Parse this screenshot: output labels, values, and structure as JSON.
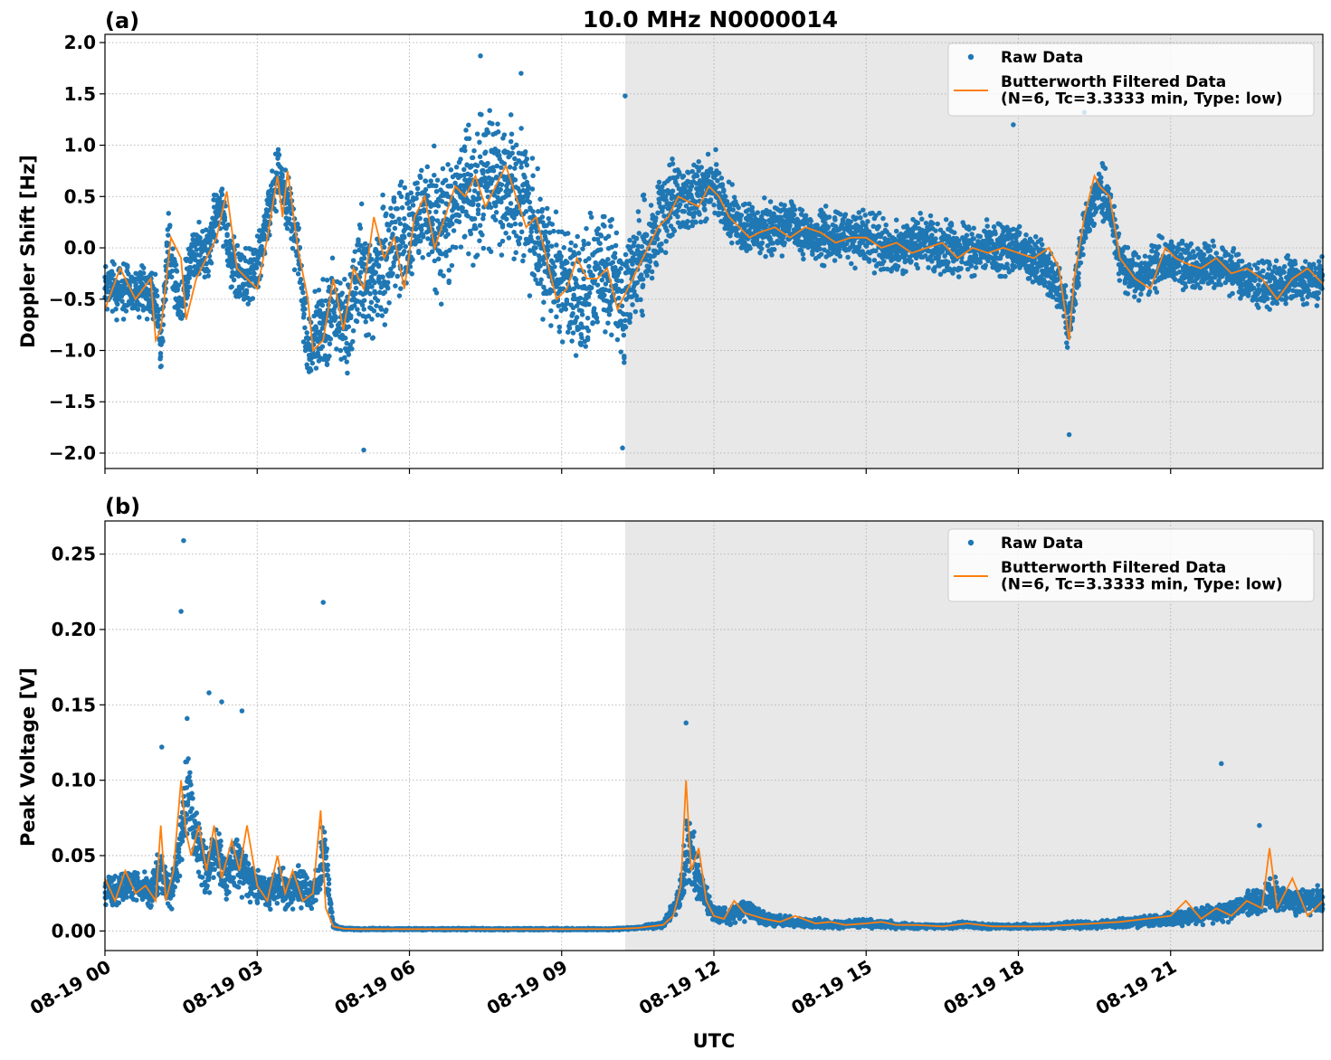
{
  "figure": {
    "title": "10.0 MHz N0000014",
    "xlabel": "UTC",
    "x_tick_labels": [
      "08-19 00",
      "08-19 03",
      "08-19 06",
      "08-19 09",
      "08-19 12",
      "08-19 15",
      "08-19 18",
      "08-19 21"
    ],
    "colors": {
      "raw": "#1f77b4",
      "filtered": "#ff7f0e",
      "shade": "#e8e8e8"
    }
  },
  "chart_data": [
    {
      "type": "scatter",
      "panel_label": "(a)",
      "ylabel": "Doppler Shift [Hz]",
      "xlim_hours": [
        0,
        24
      ],
      "ylim": [
        -2.15,
        2.08
      ],
      "y_ticks": [
        -2.0,
        -1.5,
        -1.0,
        -0.5,
        0.0,
        0.5,
        1.0,
        1.5,
        2.0
      ],
      "y_tick_labels": [
        "−2.0",
        "−1.5",
        "−1.0",
        "−0.5",
        "0.0",
        "0.5",
        "1.0",
        "1.5",
        "2.0"
      ],
      "shaded_region_hours": [
        10.25,
        24
      ],
      "grid": true,
      "legend": {
        "position": "top-right",
        "entries": [
          "Raw Data",
          "Butterworth Filtered Data\n(N=6, Tc=3.3333 min, Type: low)"
        ]
      },
      "series": [
        {
          "name": "Raw Data",
          "kind": "scatter",
          "x_hours": [
            0.0,
            0.5,
            1.0,
            1.1,
            1.25,
            1.5,
            1.75,
            2.0,
            2.3,
            2.5,
            2.75,
            3.0,
            3.25,
            3.4,
            3.6,
            3.8,
            4.0,
            4.2,
            4.5,
            4.8,
            5.0,
            5.3,
            5.6,
            6.0,
            6.3,
            6.6,
            7.0,
            7.3,
            7.6,
            8.0,
            8.3,
            8.6,
            9.0,
            9.3,
            9.6,
            10.0,
            10.2,
            10.5,
            11.0,
            11.3,
            11.6,
            12.0,
            12.3,
            12.6,
            13.0,
            13.5,
            14.0,
            14.5,
            15.0,
            15.5,
            16.0,
            16.5,
            17.0,
            17.5,
            18.0,
            18.5,
            18.9,
            19.0,
            19.3,
            19.6,
            19.8,
            20.0,
            20.3,
            20.6,
            21.0,
            21.5,
            22.0,
            22.5,
            23.0,
            23.5,
            24.0
          ],
          "y_center": [
            -0.4,
            -0.4,
            -0.5,
            -1.0,
            0.1,
            -0.6,
            0.0,
            -0.1,
            0.5,
            -0.2,
            -0.3,
            -0.2,
            0.4,
            0.75,
            0.5,
            0.0,
            -1.0,
            -0.8,
            -0.6,
            -0.8,
            -0.2,
            -0.4,
            0.0,
            0.1,
            0.4,
            0.2,
            0.5,
            0.6,
            0.7,
            0.6,
            0.4,
            0.0,
            -0.3,
            -0.5,
            -0.3,
            -0.3,
            -0.5,
            -0.2,
            0.3,
            0.5,
            0.5,
            0.6,
            0.35,
            0.15,
            0.2,
            0.2,
            0.1,
            0.1,
            0.1,
            0.0,
            0.05,
            0.0,
            0.0,
            0.0,
            -0.05,
            -0.2,
            -0.5,
            -0.8,
            0.2,
            0.6,
            0.4,
            -0.1,
            -0.3,
            -0.2,
            -0.1,
            -0.2,
            -0.2,
            -0.3,
            -0.4,
            -0.3,
            -0.3
          ],
          "y_spread": [
            0.4,
            0.4,
            0.4,
            0.3,
            0.4,
            0.4,
            0.4,
            0.4,
            0.4,
            0.4,
            0.4,
            0.4,
            0.4,
            0.4,
            0.4,
            0.5,
            0.5,
            0.6,
            0.7,
            0.7,
            0.8,
            0.8,
            0.8,
            0.8,
            0.8,
            0.9,
            0.9,
            0.9,
            0.9,
            0.9,
            0.9,
            0.8,
            0.8,
            0.8,
            0.8,
            0.8,
            0.8,
            0.7,
            0.6,
            0.5,
            0.5,
            0.4,
            0.4,
            0.35,
            0.35,
            0.35,
            0.35,
            0.35,
            0.35,
            0.35,
            0.35,
            0.35,
            0.35,
            0.35,
            0.35,
            0.35,
            0.35,
            0.35,
            0.35,
            0.35,
            0.35,
            0.35,
            0.35,
            0.35,
            0.3,
            0.3,
            0.3,
            0.3,
            0.3,
            0.3,
            0.3
          ],
          "y_extremes": [
            [
              1.87,
              7.4
            ],
            [
              1.7,
              8.2
            ],
            [
              -1.97,
              5.1
            ],
            [
              -1.95,
              10.2
            ],
            [
              1.48,
              10.25
            ],
            [
              -1.82,
              19.0
            ],
            [
              1.32,
              19.3
            ],
            [
              1.2,
              17.9
            ]
          ]
        },
        {
          "name": "Butterworth Filtered Data\n(N=6, Tc=3.3333 min, Type: low)",
          "kind": "line",
          "x_hours": [
            0.0,
            0.3,
            0.6,
            0.9,
            1.0,
            1.1,
            1.3,
            1.5,
            1.6,
            1.8,
            2.0,
            2.2,
            2.4,
            2.6,
            2.8,
            3.0,
            3.2,
            3.4,
            3.5,
            3.6,
            3.8,
            4.0,
            4.1,
            4.3,
            4.5,
            4.7,
            4.9,
            5.1,
            5.3,
            5.5,
            5.7,
            5.9,
            6.1,
            6.3,
            6.5,
            6.7,
            6.9,
            7.1,
            7.3,
            7.5,
            7.7,
            7.9,
            8.1,
            8.3,
            8.5,
            8.7,
            8.9,
            9.1,
            9.3,
            9.5,
            9.7,
            9.9,
            10.1,
            10.3,
            10.5,
            10.7,
            10.9,
            11.1,
            11.3,
            11.5,
            11.7,
            11.9,
            12.1,
            12.3,
            12.5,
            12.7,
            12.9,
            13.2,
            13.5,
            13.8,
            14.1,
            14.4,
            14.7,
            15.0,
            15.3,
            15.6,
            15.9,
            16.2,
            16.5,
            16.8,
            17.1,
            17.4,
            17.7,
            18.0,
            18.3,
            18.6,
            18.8,
            19.0,
            19.1,
            19.3,
            19.5,
            19.6,
            19.8,
            20.0,
            20.3,
            20.6,
            20.9,
            21.1,
            21.3,
            21.6,
            21.9,
            22.2,
            22.5,
            22.8,
            23.1,
            23.4,
            23.7,
            24.0
          ],
          "y": [
            -0.6,
            -0.2,
            -0.5,
            -0.3,
            -0.9,
            -0.8,
            0.1,
            -0.1,
            -0.7,
            -0.3,
            -0.1,
            0.1,
            0.55,
            -0.2,
            -0.3,
            -0.4,
            0.1,
            0.7,
            0.3,
            0.75,
            0.0,
            -0.5,
            -1.0,
            -0.9,
            -0.3,
            -0.8,
            -0.2,
            -0.4,
            0.3,
            -0.1,
            0.1,
            -0.4,
            0.3,
            0.5,
            0.0,
            0.3,
            0.6,
            0.5,
            0.7,
            0.4,
            0.6,
            0.8,
            0.5,
            0.2,
            0.3,
            -0.1,
            -0.5,
            -0.4,
            -0.1,
            -0.3,
            -0.3,
            -0.2,
            -0.6,
            -0.4,
            -0.2,
            0.0,
            0.2,
            0.3,
            0.5,
            0.45,
            0.4,
            0.6,
            0.5,
            0.3,
            0.2,
            0.1,
            0.15,
            0.2,
            0.1,
            0.2,
            0.15,
            0.05,
            0.1,
            0.1,
            0.0,
            0.05,
            -0.05,
            0.0,
            0.05,
            -0.1,
            0.0,
            -0.05,
            0.0,
            -0.05,
            -0.1,
            0.0,
            -0.2,
            -0.9,
            -0.3,
            0.3,
            0.7,
            0.6,
            0.5,
            -0.1,
            -0.3,
            -0.4,
            0.0,
            -0.1,
            -0.15,
            -0.2,
            -0.1,
            -0.25,
            -0.2,
            -0.3,
            -0.5,
            -0.3,
            -0.2,
            -0.35
          ]
        }
      ]
    },
    {
      "type": "scatter",
      "panel_label": "(b)",
      "ylabel": "Peak Voltage [V]",
      "xlim_hours": [
        0,
        24
      ],
      "ylim": [
        -0.013,
        0.272
      ],
      "y_ticks": [
        0.0,
        0.05,
        0.1,
        0.15,
        0.2,
        0.25
      ],
      "y_tick_labels": [
        "0.00",
        "0.05",
        "0.10",
        "0.15",
        "0.20",
        "0.25"
      ],
      "shaded_region_hours": [
        10.25,
        24
      ],
      "grid": true,
      "legend": {
        "position": "top-right",
        "entries": [
          "Raw Data",
          "Butterworth Filtered Data\n(N=6, Tc=3.3333 min, Type: low)"
        ]
      },
      "series": [
        {
          "name": "Raw Data",
          "kind": "scatter",
          "x_hours": [
            0.0,
            0.3,
            0.6,
            0.9,
            1.1,
            1.3,
            1.5,
            1.6,
            1.8,
            2.0,
            2.2,
            2.4,
            2.6,
            2.8,
            3.0,
            3.2,
            3.4,
            3.6,
            3.8,
            4.0,
            4.2,
            4.3,
            4.5,
            4.7,
            5.0,
            6.0,
            7.0,
            8.0,
            9.0,
            10.0,
            10.5,
            11.0,
            11.3,
            11.5,
            11.7,
            12.0,
            12.3,
            12.6,
            13.0,
            13.5,
            14.0,
            14.5,
            15.0,
            15.5,
            16.0,
            16.5,
            17.0,
            17.5,
            18.0,
            18.5,
            19.0,
            19.5,
            20.0,
            20.5,
            21.0,
            21.5,
            22.0,
            22.3,
            22.7,
            23.0,
            23.3,
            23.6,
            24.0
          ],
          "y_center": [
            0.025,
            0.03,
            0.03,
            0.025,
            0.04,
            0.025,
            0.06,
            0.1,
            0.06,
            0.04,
            0.05,
            0.035,
            0.05,
            0.035,
            0.03,
            0.025,
            0.03,
            0.025,
            0.03,
            0.025,
            0.03,
            0.06,
            0.003,
            0.0015,
            0.0012,
            0.0012,
            0.0012,
            0.0012,
            0.0012,
            0.0012,
            0.002,
            0.004,
            0.02,
            0.06,
            0.03,
            0.012,
            0.01,
            0.015,
            0.008,
            0.006,
            0.005,
            0.004,
            0.005,
            0.004,
            0.003,
            0.003,
            0.004,
            0.003,
            0.003,
            0.003,
            0.004,
            0.004,
            0.005,
            0.006,
            0.008,
            0.01,
            0.012,
            0.015,
            0.02,
            0.025,
            0.02,
            0.02,
            0.02
          ],
          "y_spread": [
            0.015,
            0.015,
            0.015,
            0.015,
            0.02,
            0.015,
            0.03,
            0.05,
            0.03,
            0.025,
            0.03,
            0.02,
            0.03,
            0.02,
            0.015,
            0.015,
            0.02,
            0.015,
            0.02,
            0.015,
            0.015,
            0.03,
            0.002,
            0.0008,
            0.0008,
            0.0008,
            0.0008,
            0.0008,
            0.0008,
            0.0008,
            0.001,
            0.003,
            0.01,
            0.04,
            0.02,
            0.008,
            0.008,
            0.01,
            0.006,
            0.004,
            0.004,
            0.003,
            0.004,
            0.003,
            0.002,
            0.002,
            0.003,
            0.002,
            0.002,
            0.002,
            0.003,
            0.003,
            0.004,
            0.005,
            0.006,
            0.007,
            0.008,
            0.01,
            0.012,
            0.015,
            0.012,
            0.012,
            0.012
          ],
          "y_extremes": [
            [
              0.259,
              1.55
            ],
            [
              0.212,
              1.5
            ],
            [
              0.158,
              2.05
            ],
            [
              0.152,
              2.3
            ],
            [
              0.146,
              2.7
            ],
            [
              0.218,
              4.3
            ],
            [
              0.122,
              1.12
            ],
            [
              0.138,
              11.45
            ],
            [
              0.111,
              22.0
            ],
            [
              0.07,
              22.75
            ]
          ]
        },
        {
          "name": "Butterworth Filtered Data\n(N=6, Tc=3.3333 min, Type: low)",
          "kind": "line",
          "x_hours": [
            0.0,
            0.2,
            0.4,
            0.6,
            0.8,
            1.0,
            1.1,
            1.2,
            1.35,
            1.5,
            1.6,
            1.7,
            1.85,
            2.0,
            2.15,
            2.3,
            2.5,
            2.65,
            2.8,
            3.0,
            3.2,
            3.4,
            3.55,
            3.7,
            3.9,
            4.1,
            4.25,
            4.35,
            4.5,
            4.7,
            5.0,
            6.0,
            7.0,
            8.0,
            9.0,
            10.0,
            10.5,
            11.0,
            11.2,
            11.35,
            11.45,
            11.55,
            11.7,
            11.85,
            12.0,
            12.2,
            12.4,
            12.6,
            12.8,
            13.0,
            13.3,
            13.6,
            14.0,
            14.3,
            14.6,
            15.0,
            15.3,
            15.6,
            16.0,
            16.5,
            17.0,
            17.5,
            18.0,
            18.5,
            19.0,
            19.5,
            20.0,
            20.5,
            21.0,
            21.3,
            21.6,
            21.9,
            22.2,
            22.5,
            22.8,
            22.95,
            23.1,
            23.4,
            23.7,
            24.0
          ],
          "y": [
            0.035,
            0.02,
            0.04,
            0.025,
            0.03,
            0.02,
            0.07,
            0.02,
            0.04,
            0.1,
            0.065,
            0.05,
            0.07,
            0.04,
            0.07,
            0.035,
            0.06,
            0.04,
            0.07,
            0.03,
            0.02,
            0.05,
            0.025,
            0.04,
            0.02,
            0.025,
            0.08,
            0.015,
            0.003,
            0.0015,
            0.0012,
            0.0012,
            0.0012,
            0.0012,
            0.0012,
            0.0013,
            0.002,
            0.004,
            0.01,
            0.03,
            0.1,
            0.04,
            0.055,
            0.02,
            0.01,
            0.008,
            0.02,
            0.012,
            0.01,
            0.008,
            0.006,
            0.01,
            0.005,
            0.006,
            0.004,
            0.005,
            0.006,
            0.004,
            0.004,
            0.003,
            0.005,
            0.003,
            0.003,
            0.003,
            0.004,
            0.005,
            0.006,
            0.008,
            0.01,
            0.02,
            0.008,
            0.015,
            0.01,
            0.02,
            0.015,
            0.055,
            0.015,
            0.035,
            0.01,
            0.02
          ]
        }
      ]
    }
  ]
}
